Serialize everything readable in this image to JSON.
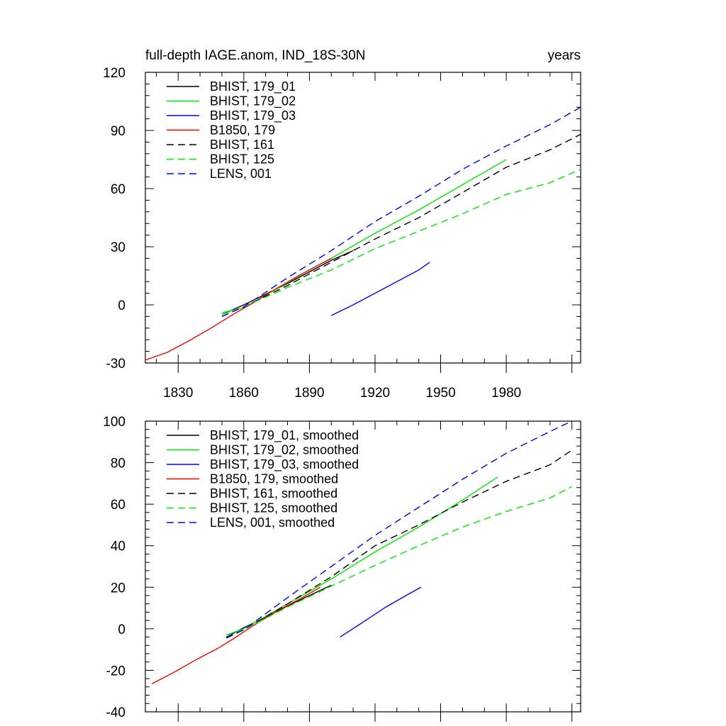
{
  "chart_data": [
    {
      "type": "line",
      "title_left": "full-depth IAGE.anom, IND_18S-30N",
      "title_right": "years",
      "xlabel": "",
      "ylabel": "",
      "xlim": [
        1815,
        2014
      ],
      "ylim": [
        -30,
        120
      ],
      "x_ticks": [
        1830,
        1860,
        1890,
        1920,
        1950,
        1980
      ],
      "y_ticks": [
        -30,
        0,
        30,
        60,
        90,
        120
      ],
      "x_tick_labels": [
        "1830",
        "1860",
        "1890",
        "1920",
        "1950",
        "1980"
      ],
      "y_tick_labels": [
        "-30",
        "0",
        "30",
        "60",
        "90",
        "120"
      ],
      "show_x_tick_labels": true,
      "grid": false,
      "legend_position": "top-left",
      "series": [
        {
          "name": "BHIST, 179_01",
          "color": "#000000",
          "dash": "solid",
          "x": [
            1850,
            1860,
            1870,
            1880,
            1890,
            1900,
            1910
          ],
          "y": [
            -5,
            0,
            5.5,
            11,
            17,
            23,
            28
          ]
        },
        {
          "name": "BHIST, 179_02",
          "color": "#00ee00",
          "dash": "solid",
          "x": [
            1850,
            1860,
            1870,
            1880,
            1890,
            1900,
            1920,
            1940,
            1960,
            1980
          ],
          "y": [
            -4,
            -1.5,
            5,
            11.5,
            18,
            24,
            37,
            49,
            62,
            75
          ]
        },
        {
          "name": "BHIST, 179_03",
          "color": "#0000ff",
          "dash": "solid",
          "x": [
            1900,
            1910,
            1920,
            1930,
            1940,
            1945
          ],
          "y": [
            -5.5,
            0,
            6,
            12,
            18,
            22
          ]
        },
        {
          "name": "B1850, 179",
          "color": "#ff0000",
          "dash": "solid",
          "x": [
            1815,
            1825,
            1835,
            1845,
            1855,
            1865,
            1875,
            1885,
            1895,
            1900
          ],
          "y": [
            -28.5,
            -24.5,
            -18.5,
            -12,
            -5,
            1.5,
            8.5,
            15,
            21,
            24
          ]
        },
        {
          "name": "BHIST, 161",
          "color": "#000000",
          "dash": "dashed",
          "x": [
            1850,
            1860,
            1880,
            1900,
            1920,
            1940,
            1960,
            1980,
            2000,
            2014
          ],
          "y": [
            -6,
            -1,
            10,
            22,
            34,
            45,
            58,
            71,
            80,
            88
          ]
        },
        {
          "name": "BHIST, 125",
          "color": "#00ee00",
          "dash": "dashed",
          "x": [
            1850,
            1860,
            1880,
            1900,
            1920,
            1940,
            1960,
            1980,
            2000,
            2014
          ],
          "y": [
            -5,
            -1,
            9,
            18,
            29,
            38,
            47,
            57,
            63,
            70
          ]
        },
        {
          "name": "LENS, 001",
          "color": "#0000ff",
          "dash": "dashed",
          "x": [
            1850,
            1860,
            1880,
            1900,
            1920,
            1940,
            1960,
            1980,
            2000,
            2014
          ],
          "y": [
            -6,
            -1,
            14,
            28,
            43,
            56,
            70,
            82,
            93,
            102
          ]
        }
      ]
    },
    {
      "type": "line",
      "title_left": "",
      "title_right": "",
      "xlabel": "",
      "ylabel": "",
      "xlim": [
        1815,
        2014
      ],
      "ylim": [
        -40,
        100
      ],
      "x_ticks": [
        1830,
        1860,
        1890,
        1920,
        1950,
        1980
      ],
      "y_ticks": [
        -40,
        -20,
        0,
        20,
        40,
        60,
        80,
        100
      ],
      "x_tick_labels": [],
      "y_tick_labels": [
        "-40",
        "-20",
        "0",
        "20",
        "40",
        "60",
        "80",
        "100"
      ],
      "show_x_tick_labels": false,
      "grid": false,
      "legend_position": "top-left",
      "series": [
        {
          "name": "BHIST, 179_01, smoothed",
          "color": "#000000",
          "dash": "solid",
          "x": [
            1852,
            1860,
            1870,
            1880,
            1890,
            1900
          ],
          "y": [
            -4,
            0.5,
            5.5,
            11,
            16,
            21
          ]
        },
        {
          "name": "BHIST, 179_02, smoothed",
          "color": "#00ee00",
          "dash": "solid",
          "x": [
            1852,
            1860,
            1880,
            1900,
            1920,
            1940,
            1960,
            1976
          ],
          "y": [
            -3,
            0,
            12,
            24,
            37,
            49,
            62,
            73
          ]
        },
        {
          "name": "BHIST, 179_03, smoothed",
          "color": "#0000ff",
          "dash": "solid",
          "x": [
            1904,
            1915,
            1925,
            1935,
            1941
          ],
          "y": [
            -4,
            3.5,
            10.5,
            16.5,
            20
          ]
        },
        {
          "name": "B1850, 179, smoothed",
          "color": "#ff0000",
          "dash": "solid",
          "x": [
            1818,
            1828,
            1838,
            1848,
            1855,
            1865,
            1875,
            1885,
            1895
          ],
          "y": [
            -26.5,
            -21,
            -15,
            -9.5,
            -5,
            2,
            8.5,
            14,
            20
          ]
        },
        {
          "name": "BHIST, 161, smoothed",
          "color": "#000000",
          "dash": "dashed",
          "x": [
            1852,
            1860,
            1880,
            1900,
            1920,
            1940,
            1960,
            1980,
            2000,
            2010
          ],
          "y": [
            -4.5,
            -0.5,
            12,
            25,
            40,
            50,
            61,
            71,
            79,
            86
          ]
        },
        {
          "name": "BHIST, 125, smoothed",
          "color": "#00ee00",
          "dash": "dashed",
          "x": [
            1852,
            1860,
            1880,
            1900,
            1920,
            1940,
            1960,
            1980,
            2000,
            2010
          ],
          "y": [
            -4,
            -0.5,
            10.5,
            20.5,
            30.5,
            40,
            49,
            56.5,
            63,
            68.5
          ]
        },
        {
          "name": "LENS, 001, smoothed",
          "color": "#0000ff",
          "dash": "dashed",
          "x": [
            1852,
            1860,
            1880,
            1900,
            1920,
            1940,
            1960,
            1980,
            2000,
            2010
          ],
          "y": [
            -4,
            -0.5,
            15,
            30,
            45,
            58.5,
            72,
            84.5,
            95,
            100
          ]
        }
      ]
    }
  ]
}
